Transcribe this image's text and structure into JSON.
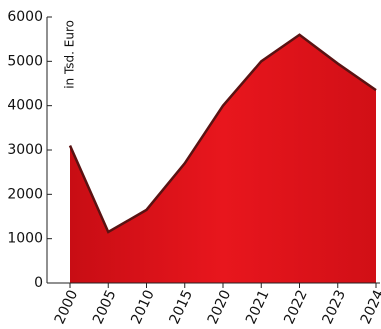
{
  "chart_data": {
    "type": "area",
    "y_label": "in Tsd. Euro",
    "categories": [
      "2000",
      "2005",
      "2010",
      "2015",
      "2020",
      "2021",
      "2022",
      "2023",
      "2024"
    ],
    "values": [
      3100,
      1150,
      1650,
      2700,
      4000,
      5000,
      5600,
      4950,
      4350
    ],
    "color": "#e1141b",
    "line_color": "#5a1212",
    "ylim": [
      0,
      6000
    ],
    "yticks": [
      0,
      1000,
      2000,
      3000,
      4000,
      5000,
      6000
    ]
  }
}
